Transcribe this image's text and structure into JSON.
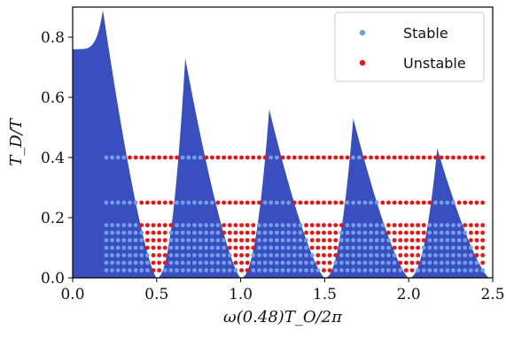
{
  "chart_data": {
    "type": "scatter",
    "xlabel": "ω(0.48)T_O/2π",
    "ylabel": "T_D/T",
    "xlim": [
      0.0,
      2.5
    ],
    "ylim": [
      0.0,
      0.9
    ],
    "x_ticks": [
      "0.0",
      "0.5",
      "1.0",
      "1.5",
      "2.0",
      "2.5"
    ],
    "y_ticks": [
      "0.0",
      "0.2",
      "0.4",
      "0.6",
      "0.8"
    ],
    "grid": false,
    "legend": {
      "placement": "top-right",
      "entries": [
        "Stable",
        "Unstable"
      ]
    },
    "colors": {
      "region": "#3a4fbf",
      "stable": "#6f9fe8",
      "unstable": "#ee1111"
    },
    "stability_region": {
      "peaks": [
        {
          "x": 0.18,
          "y": 0.89
        },
        {
          "x": 0.67,
          "y": 0.73
        },
        {
          "x": 1.17,
          "y": 0.56
        },
        {
          "x": 1.67,
          "y": 0.53
        },
        {
          "x": 2.17,
          "y": 0.43
        }
      ],
      "left_start": 0.76,
      "troughs": [
        0.5,
        1.0,
        1.5,
        2.0,
        2.48
      ]
    },
    "grid_points": {
      "x_start": 0.2,
      "x_end": 2.46,
      "x_step": 0.035,
      "y_levels": [
        0.4,
        0.25,
        0.175,
        0.15,
        0.125,
        0.1,
        0.075,
        0.05,
        0.025
      ]
    },
    "series": [
      {
        "name": "Stable"
      },
      {
        "name": "Unstable"
      }
    ]
  }
}
